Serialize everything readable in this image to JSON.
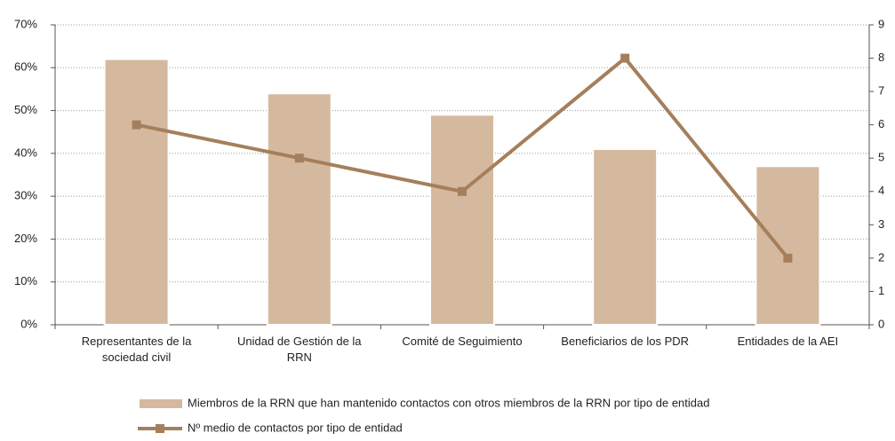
{
  "chart_data": {
    "type": "bar",
    "categories": [
      "Representantes de la\nsociedad civil",
      "Unidad de Gestión de la\nRRN",
      "Comité de Seguimiento",
      "Beneficiarios de los PDR",
      "Entidades de la AEI"
    ],
    "series": [
      {
        "name": "Miembros de la RRN que han mantenido contactos con otros miembros de la RRN por tipo de entidad",
        "type": "bar",
        "color": "#d5b99e",
        "values": [
          62,
          54,
          49,
          41,
          37
        ]
      },
      {
        "name": "Nº medio de contactos por tipo de entidad",
        "type": "line",
        "axis": "y2",
        "color": "#a57f5b",
        "values": [
          6,
          5,
          4,
          8,
          2
        ]
      }
    ],
    "ylim": [
      0,
      70
    ],
    "yticks": [
      {
        "value": 0,
        "label": "0%"
      },
      {
        "value": 10,
        "label": "10%"
      },
      {
        "value": 20,
        "label": "20%"
      },
      {
        "value": 30,
        "label": "30%"
      },
      {
        "value": 40,
        "label": "40%"
      },
      {
        "value": 50,
        "label": "50%"
      },
      {
        "value": 60,
        "label": "60%"
      },
      {
        "value": 70,
        "label": "70%"
      }
    ],
    "y2lim": [
      0,
      9
    ],
    "y2ticks": [
      0,
      1,
      2,
      3,
      4,
      5,
      6,
      7,
      8,
      9
    ],
    "grid": true
  }
}
